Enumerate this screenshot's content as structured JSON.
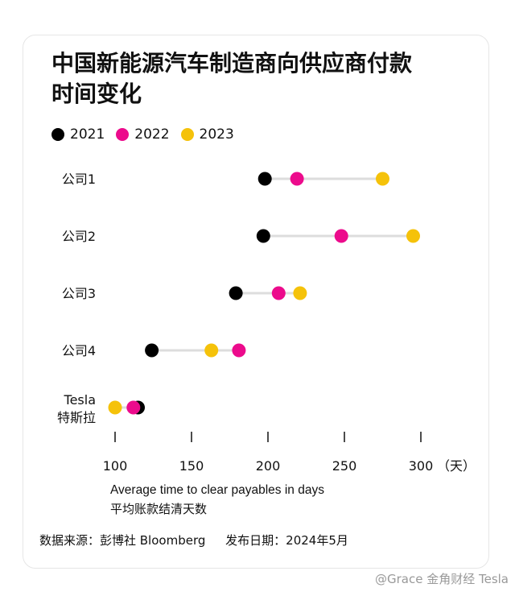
{
  "chart_data": {
    "type": "dumbbell",
    "title_lines": [
      "中国新能源汽车制造商向供应商付款",
      "时间变化"
    ],
    "legend": [
      {
        "name": "2021",
        "color": "#000000"
      },
      {
        "name": "2022",
        "color": "#ec0b8c"
      },
      {
        "name": "2023",
        "color": "#f5c20a"
      }
    ],
    "categories": [
      {
        "lines": [
          "公司1"
        ]
      },
      {
        "lines": [
          "公司2"
        ]
      },
      {
        "lines": [
          "公司3"
        ]
      },
      {
        "lines": [
          "公司4"
        ]
      },
      {
        "lines": [
          "Tesla",
          "特斯拉"
        ]
      }
    ],
    "series": [
      {
        "name": "2021",
        "values": [
          198,
          197,
          179,
          124,
          115
        ]
      },
      {
        "name": "2022",
        "values": [
          219,
          248,
          207,
          181,
          112
        ]
      },
      {
        "name": "2023",
        "values": [
          275,
          295,
          221,
          163,
          100
        ]
      }
    ],
    "x_ticks": [
      100,
      150,
      200,
      250,
      300
    ],
    "x_unit": "（天）",
    "xlim": [
      100,
      300
    ],
    "xlabel": "Average time to clear payables in days",
    "xlabel_zh": "平均账款结清天数",
    "line_color": "#dddddd"
  },
  "footer": {
    "source": "数据来源：彭博社 Bloomberg",
    "date": "发布日期：2024年5月"
  },
  "watermark": "@Grace 金角财经 Tesla"
}
